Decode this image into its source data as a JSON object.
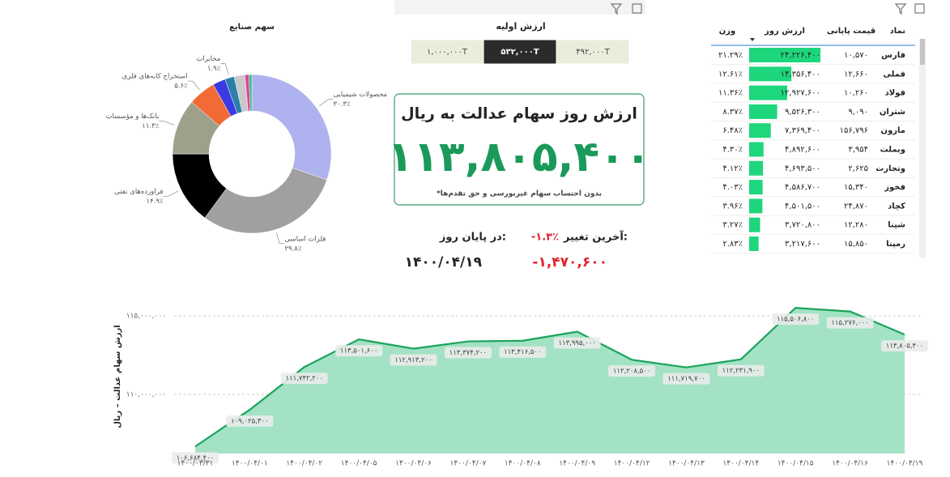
{
  "chart_data": [
    {
      "type": "pie",
      "title": "سهم صنایع",
      "categories": [
        "محصولات شیمیایی",
        "فلزات اساسی",
        "فراورده‌های نفتی",
        "بانک‌ها و مؤسسات",
        "استخراج کانه‌های فلزی",
        null,
        "مخابرات",
        null,
        null,
        null
      ],
      "values": [
        30.3,
        29.8,
        14.9,
        11.3,
        5.6,
        2.6,
        1.9,
        2.2,
        0.8,
        0.6
      ],
      "value_labels": [
        "۳۰.۳٪",
        "۲۹.۸٪",
        "۱۴.۹٪",
        "۱۱.۳٪",
        "۵.۶٪",
        null,
        "۱.۹٪",
        null,
        null,
        null
      ],
      "colors": [
        "#aeb2ee",
        "#a0a0a0",
        "#000000",
        "#9ea08a",
        "#f26a36",
        "#3a3ae0",
        "#2a80a8",
        "#c9c9c9",
        "#e040a0",
        "#30c080"
      ]
    },
    {
      "type": "line",
      "y_label": "ارزش سهام عدالت – ریال",
      "categories": [
        "۱۴۰۰/۰۳/۳۱",
        "۱۴۰۰/۰۴/۰۱",
        "۱۴۰۰/۰۴/۰۲",
        "۱۴۰۰/۰۴/۰۵",
        "۱۴۰۰/۰۴/۰۶",
        "۱۴۰۰/۰۴/۰۷",
        "۱۴۰۰/۰۴/۰۸",
        "۱۴۰۰/۰۴/۰۹",
        "۱۴۰۰/۰۴/۱۲",
        "۱۴۰۰/۰۴/۱۳",
        "۱۴۰۰/۰۴/۱۴",
        "۱۴۰۰/۰۴/۱۵",
        "۱۴۰۰/۰۴/۱۶",
        "۱۴۰۰/۰۴/۱۹"
      ],
      "values": [
        106684400,
        109025300,
        111742200,
        113501600,
        112913200,
        113374200,
        113416500,
        113995000,
        112208500,
        111719700,
        112231900,
        115506800,
        115276000,
        113805400
      ],
      "value_labels": [
        "۱۰۶,۶۸۴,۴۰۰",
        "۱۰۹,۰۲۵,۳۰۰",
        "۱۱۱,۷۴۲,۲۰۰",
        "۱۱۳,۵۰۱,۶۰۰",
        "۱۱۲,۹۱۳,۲۰۰",
        "۱۱۳,۳۷۴,۲۰۰",
        "۱۱۳,۴۱۶,۵۰۰",
        "۱۱۳,۹۹۵,۰۰۰",
        "۱۱۲,۲۰۸,۵۰۰",
        "۱۱۱,۷۱۹,۷۰۰",
        "۱۱۲,۲۳۱,۹۰۰",
        "۱۱۵,۵۰۶,۸۰۰",
        "۱۱۵,۲۷۶,۰۰۰",
        "۱۱۳,۸۰۵,۴۰۰"
      ],
      "ylim": [
        106240000,
        116030000
      ],
      "yticks": [
        {
          "value": 110000000,
          "label": "۱۱۰,۰۰۰,۰۰۰"
        },
        {
          "value": 115000000,
          "label": "۱۱۵,۰۰۰,۰۰۰"
        }
      ],
      "grid": true,
      "color": "#1aa35a",
      "fill": "#a3e2c4"
    }
  ],
  "slicer": {
    "title": "ارزش اولیه",
    "options": [
      "۱,۰۰۰,۰۰۰T",
      "۵۳۲,۰۰۰T",
      "۴۹۲,۰۰۰T"
    ],
    "selected": 1
  },
  "kpi": {
    "title": "ارزش روز سهام عدالت به ریال",
    "value": "۱۱۳,۸۰۵,۴۰۰",
    "note": "*بدون احتساب سهام غیربورسی و حق تقدم‌ها"
  },
  "change": {
    "label": "آخرین تغییر:",
    "percent": "-۱.۳٪",
    "day_label": "در پایان روز:",
    "amount": "-۱,۴۷۰,۶۰۰",
    "date": "۱۴۰۰/۰۴/۱۹"
  },
  "table": {
    "headers": [
      "نماد",
      "قیمت پایانی",
      "ارزش روز",
      "وزن"
    ],
    "rows": [
      [
        "فارس",
        "۱۰,۵۷۰",
        "۲۴,۲۲۶,۴۰۰",
        "۲۱.۲۹٪"
      ],
      [
        "فملی",
        "۱۲,۶۶۰",
        "۱۴,۳۵۶,۴۰۰",
        "۱۲.۶۱٪"
      ],
      [
        "فولاد",
        "۱۰,۲۶۰",
        "۱۲,۹۲۷,۶۰۰",
        "۱۱.۳۶٪"
      ],
      [
        "شتران",
        "۹,۰۹۰",
        "۹,۵۲۶,۳۰۰",
        "۸.۳۷٪"
      ],
      [
        "مارون",
        "۱۵۶,۷۹۶",
        "۷,۳۶۹,۴۰۰",
        "۶.۴۸٪"
      ],
      [
        "وبملت",
        "۳,۹۵۴",
        "۴,۸۹۲,۶۰۰",
        "۴.۳۰٪"
      ],
      [
        "وتجارت",
        "۲,۶۲۵",
        "۴,۶۹۳,۵۰۰",
        "۴.۱۲٪"
      ],
      [
        "فخوز",
        "۱۵,۳۴۰",
        "۴,۵۸۶,۷۰۰",
        "۴.۰۳٪"
      ],
      [
        "کچاد",
        "۲۴,۸۷۰",
        "۴,۵۰۱,۵۰۰",
        "۳.۹۶٪"
      ],
      [
        "شپنا",
        "۱۲,۲۸۰",
        "۳,۷۲۰,۸۰۰",
        "۳.۲۷٪"
      ],
      [
        "رمپنا",
        "۱۵,۸۵۰",
        "۳,۲۱۷,۶۰۰",
        "۲.۸۳٪"
      ]
    ]
  }
}
